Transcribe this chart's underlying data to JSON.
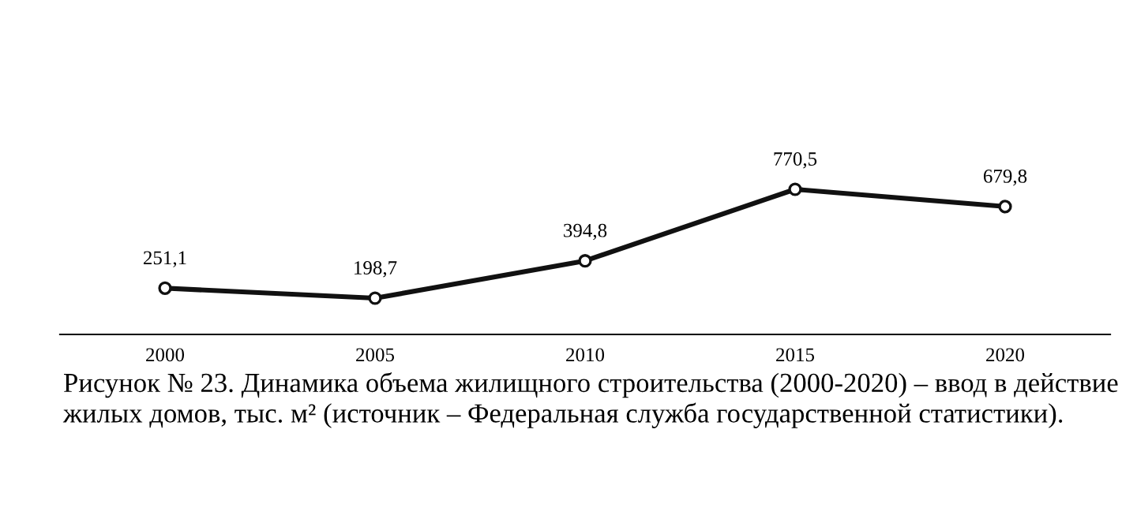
{
  "chart_data": {
    "type": "line",
    "categories": [
      "2000",
      "2005",
      "2010",
      "2015",
      "2020"
    ],
    "series": [
      {
        "color": "#111111",
        "values": [
          251.1,
          198.7,
          394.8,
          770.5,
          679.8
        ],
        "value_labels": [
          "251,1",
          "198,7",
          "394,8",
          "770,5",
          "679,8"
        ]
      }
    ],
    "tick_labels": "x",
    "marker": "circle",
    "line_style": "solid",
    "grid": false,
    "legend": false,
    "annotations": [
      "Рисунок № 23. Динамика объема жилищного строительства (2000-2020) – ввод в действие жилых домов, тыс. м² (источник – Федеральная служба государственной статистики)."
    ]
  }
}
